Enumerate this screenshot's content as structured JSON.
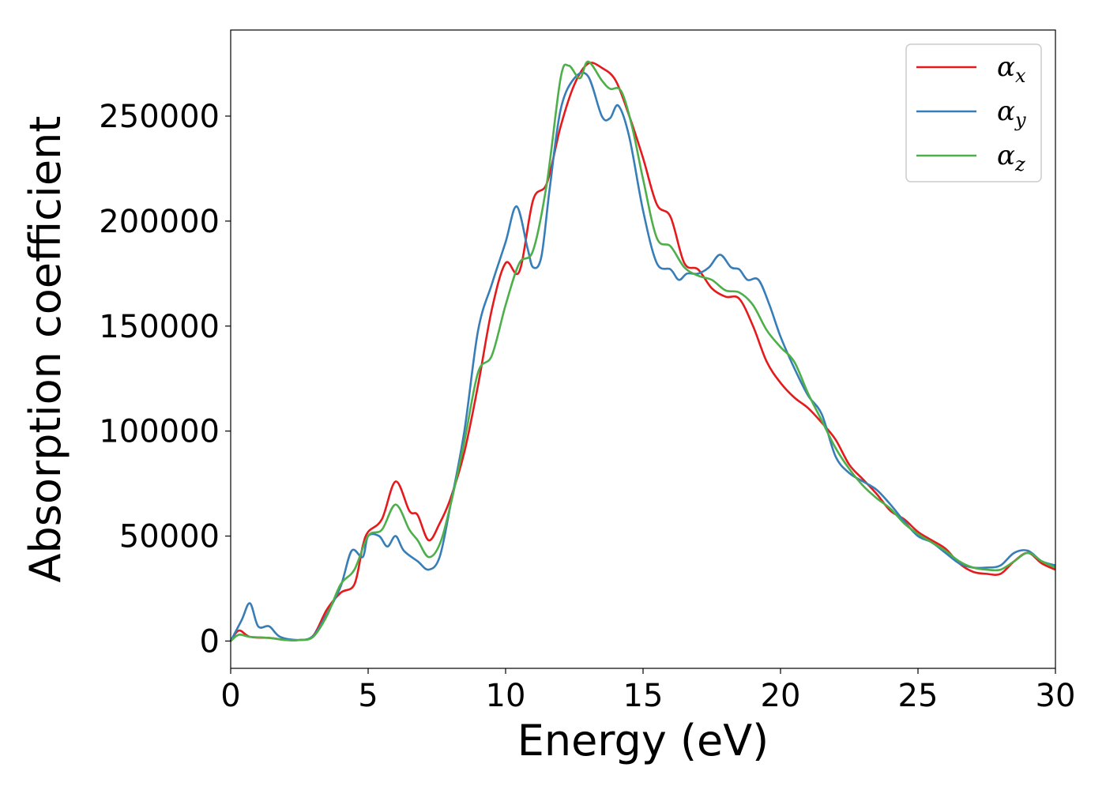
{
  "chart_data": {
    "type": "line",
    "xlabel": "Energy (eV)",
    "ylabel": "Absorption coefficient",
    "xlim": [
      0,
      30
    ],
    "ylim": [
      -13000,
      291000
    ],
    "xticks": [
      0,
      5,
      10,
      15,
      20,
      25,
      30
    ],
    "yticks": [
      0,
      50000,
      100000,
      150000,
      200000,
      250000
    ],
    "grid": false,
    "legend_position": "top-right",
    "series": [
      {
        "name": "α",
        "subscript": "x",
        "color": "#e41a1c",
        "points": [
          [
            0,
            0
          ],
          [
            0.3,
            5000
          ],
          [
            0.7,
            2000
          ],
          [
            1.4,
            1500
          ],
          [
            2,
            500
          ],
          [
            2.5,
            500
          ],
          [
            3,
            2500
          ],
          [
            3.5,
            15000
          ],
          [
            4,
            23000
          ],
          [
            4.5,
            27000
          ],
          [
            4.8,
            45000
          ],
          [
            5,
            52000
          ],
          [
            5.5,
            58000
          ],
          [
            6,
            76000
          ],
          [
            6.5,
            62000
          ],
          [
            6.8,
            60000
          ],
          [
            7.2,
            48000
          ],
          [
            7.6,
            56000
          ],
          [
            8,
            68000
          ],
          [
            8.5,
            90000
          ],
          [
            9,
            122000
          ],
          [
            9.5,
            158000
          ],
          [
            10,
            180000
          ],
          [
            10.5,
            176000
          ],
          [
            11,
            210000
          ],
          [
            11.5,
            218000
          ],
          [
            12,
            245000
          ],
          [
            12.5,
            265000
          ],
          [
            13,
            275000
          ],
          [
            13.5,
            273000
          ],
          [
            14,
            267000
          ],
          [
            14.5,
            250000
          ],
          [
            15,
            230000
          ],
          [
            15.5,
            208000
          ],
          [
            16,
            202000
          ],
          [
            16.5,
            180000
          ],
          [
            17,
            177000
          ],
          [
            17.5,
            168000
          ],
          [
            18,
            164000
          ],
          [
            18.5,
            163000
          ],
          [
            19,
            150000
          ],
          [
            19.5,
            133000
          ],
          [
            20,
            123000
          ],
          [
            20.5,
            116000
          ],
          [
            21,
            111000
          ],
          [
            21.5,
            104000
          ],
          [
            22,
            96000
          ],
          [
            22.5,
            84000
          ],
          [
            23,
            77000
          ],
          [
            23.5,
            70000
          ],
          [
            24,
            62000
          ],
          [
            24.5,
            58000
          ],
          [
            25,
            52000
          ],
          [
            25.5,
            48000
          ],
          [
            26,
            44000
          ],
          [
            26.5,
            37000
          ],
          [
            27,
            33000
          ],
          [
            27.5,
            32000
          ],
          [
            28,
            32000
          ],
          [
            28.5,
            38000
          ],
          [
            29,
            42000
          ],
          [
            29.5,
            37000
          ],
          [
            30,
            34000
          ]
        ]
      },
      {
        "name": "α",
        "subscript": "y",
        "color": "#377eb8",
        "points": [
          [
            0,
            0
          ],
          [
            0.4,
            10000
          ],
          [
            0.7,
            18000
          ],
          [
            1,
            7000
          ],
          [
            1.4,
            7000
          ],
          [
            1.8,
            2000
          ],
          [
            2.5,
            500
          ],
          [
            3,
            2500
          ],
          [
            3.5,
            13000
          ],
          [
            4,
            26000
          ],
          [
            4.4,
            43000
          ],
          [
            4.8,
            40000
          ],
          [
            5,
            50000
          ],
          [
            5.4,
            50000
          ],
          [
            5.7,
            45000
          ],
          [
            6,
            50000
          ],
          [
            6.3,
            43000
          ],
          [
            6.8,
            38000
          ],
          [
            7.2,
            34000
          ],
          [
            7.6,
            40000
          ],
          [
            8,
            65000
          ],
          [
            8.5,
            100000
          ],
          [
            9,
            148000
          ],
          [
            9.5,
            170000
          ],
          [
            10,
            190000
          ],
          [
            10.4,
            207000
          ],
          [
            10.8,
            187000
          ],
          [
            11,
            178000
          ],
          [
            11.3,
            183000
          ],
          [
            11.6,
            215000
          ],
          [
            12,
            253000
          ],
          [
            12.5,
            268000
          ],
          [
            13,
            269000
          ],
          [
            13.5,
            250000
          ],
          [
            13.8,
            249000
          ],
          [
            14.1,
            255000
          ],
          [
            14.5,
            240000
          ],
          [
            15,
            205000
          ],
          [
            15.5,
            180000
          ],
          [
            16,
            177000
          ],
          [
            16.3,
            172000
          ],
          [
            16.6,
            175000
          ],
          [
            17,
            175000
          ],
          [
            17.4,
            178000
          ],
          [
            17.8,
            184000
          ],
          [
            18.2,
            178000
          ],
          [
            18.5,
            177000
          ],
          [
            18.8,
            172000
          ],
          [
            19.2,
            172000
          ],
          [
            19.6,
            160000
          ],
          [
            20,
            145000
          ],
          [
            20.5,
            130000
          ],
          [
            21,
            117000
          ],
          [
            21.5,
            108000
          ],
          [
            22,
            88000
          ],
          [
            22.5,
            80000
          ],
          [
            23,
            76000
          ],
          [
            23.5,
            72000
          ],
          [
            24,
            65000
          ],
          [
            24.5,
            57000
          ],
          [
            25,
            50000
          ],
          [
            25.5,
            47000
          ],
          [
            26,
            42000
          ],
          [
            26.5,
            37000
          ],
          [
            27,
            35000
          ],
          [
            27.5,
            35000
          ],
          [
            28,
            36000
          ],
          [
            28.5,
            42000
          ],
          [
            29,
            43000
          ],
          [
            29.5,
            38000
          ],
          [
            30,
            36000
          ]
        ]
      },
      {
        "name": "α",
        "subscript": "z",
        "color": "#4daf4a",
        "points": [
          [
            0,
            0
          ],
          [
            0.3,
            3000
          ],
          [
            0.7,
            2000
          ],
          [
            1.4,
            1500
          ],
          [
            2,
            500
          ],
          [
            2.5,
            500
          ],
          [
            3,
            2000
          ],
          [
            3.5,
            12000
          ],
          [
            4,
            27000
          ],
          [
            4.5,
            34000
          ],
          [
            5,
            50000
          ],
          [
            5.5,
            53000
          ],
          [
            6,
            65000
          ],
          [
            6.5,
            53000
          ],
          [
            6.8,
            48000
          ],
          [
            7.2,
            40000
          ],
          [
            7.6,
            46000
          ],
          [
            8,
            65000
          ],
          [
            8.5,
            95000
          ],
          [
            9,
            128000
          ],
          [
            9.5,
            136000
          ],
          [
            10,
            160000
          ],
          [
            10.5,
            180000
          ],
          [
            11,
            186000
          ],
          [
            11.5,
            218000
          ],
          [
            12,
            268000
          ],
          [
            12.3,
            274000
          ],
          [
            12.7,
            268000
          ],
          [
            13,
            276000
          ],
          [
            13.5,
            267000
          ],
          [
            13.8,
            263000
          ],
          [
            14.2,
            262000
          ],
          [
            14.6,
            245000
          ],
          [
            15,
            220000
          ],
          [
            15.5,
            192000
          ],
          [
            16,
            188000
          ],
          [
            16.5,
            178000
          ],
          [
            17,
            174000
          ],
          [
            17.5,
            172000
          ],
          [
            18,
            167000
          ],
          [
            18.5,
            166000
          ],
          [
            19,
            160000
          ],
          [
            19.5,
            148000
          ],
          [
            20,
            140000
          ],
          [
            20.5,
            133000
          ],
          [
            21,
            118000
          ],
          [
            21.5,
            105000
          ],
          [
            22,
            92000
          ],
          [
            22.5,
            82000
          ],
          [
            23,
            74000
          ],
          [
            23.5,
            68000
          ],
          [
            24,
            63000
          ],
          [
            24.5,
            56000
          ],
          [
            25,
            51000
          ],
          [
            25.5,
            47000
          ],
          [
            26,
            43000
          ],
          [
            26.5,
            38000
          ],
          [
            27,
            35000
          ],
          [
            27.5,
            34000
          ],
          [
            28,
            34000
          ],
          [
            28.5,
            38000
          ],
          [
            29,
            42000
          ],
          [
            29.5,
            38000
          ],
          [
            30,
            35000
          ]
        ]
      }
    ]
  }
}
